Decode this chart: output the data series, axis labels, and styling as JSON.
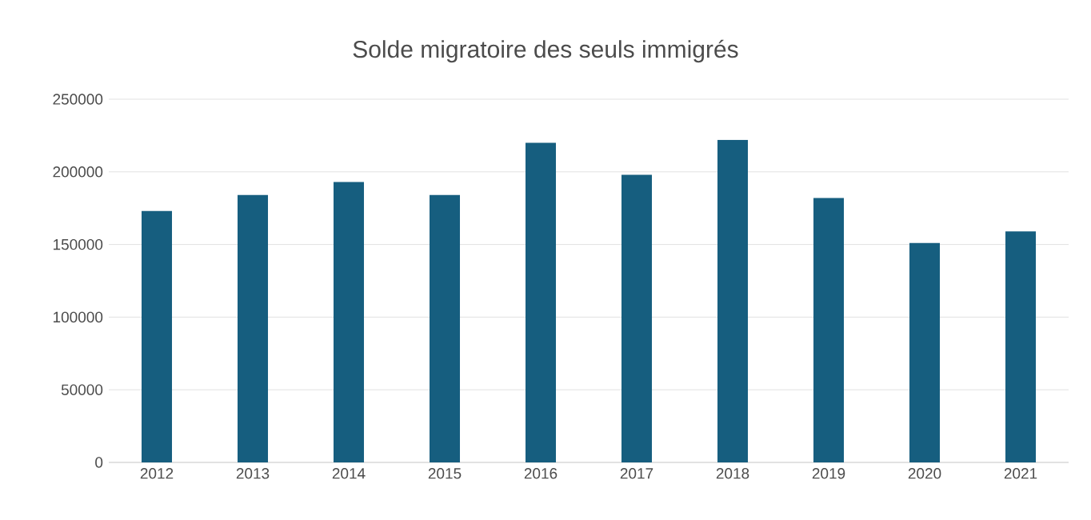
{
  "chart_data": {
    "type": "bar",
    "title": "Solde migratoire des seuls immigrés",
    "categories": [
      "2012",
      "2013",
      "2014",
      "2015",
      "2016",
      "2017",
      "2018",
      "2019",
      "2020",
      "2021"
    ],
    "values": [
      173000,
      184000,
      193000,
      184000,
      220000,
      198000,
      222000,
      182000,
      151000,
      159000
    ],
    "color": "#165e7f",
    "ylim": [
      0,
      250000
    ],
    "yticks": [
      0,
      50000,
      100000,
      150000,
      200000,
      250000
    ],
    "grid": "y"
  }
}
